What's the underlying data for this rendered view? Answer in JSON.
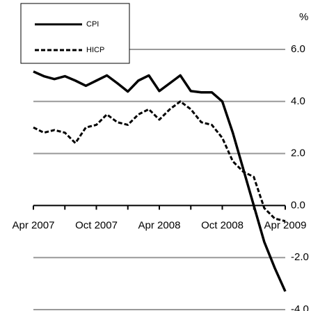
{
  "chart_data": {
    "type": "line",
    "y_unit": "%",
    "categories": [
      "Apr 2007",
      null,
      null,
      null,
      null,
      null,
      "Oct 2007",
      null,
      null,
      null,
      null,
      null,
      "Apr 2008",
      null,
      null,
      null,
      null,
      null,
      "Oct 2008",
      null,
      null,
      null,
      null,
      null,
      "Apr 2009"
    ],
    "series": [
      {
        "name": "CPI",
        "color": "#000000",
        "dash": false,
        "values": [
          5.15,
          4.97,
          4.86,
          4.97,
          4.8,
          4.6,
          4.8,
          5.0,
          4.7,
          4.38,
          4.8,
          5.0,
          4.4,
          4.7,
          5.0,
          4.4,
          4.35,
          4.35,
          4.0,
          2.8,
          1.4,
          0.0,
          -1.4,
          -2.4,
          -3.3
        ]
      },
      {
        "name": "HICP",
        "color": "#000000",
        "dash": true,
        "values": [
          3.0,
          2.8,
          2.9,
          2.8,
          2.4,
          3.0,
          3.1,
          3.5,
          3.2,
          3.1,
          3.5,
          3.7,
          3.3,
          3.7,
          4.0,
          3.7,
          3.2,
          3.1,
          2.6,
          1.7,
          1.3,
          1.1,
          -0.1,
          -0.5,
          -0.6
        ]
      }
    ],
    "ylim": [
      -4,
      6
    ],
    "yticks": [
      {
        "value": 6,
        "label": "6.0"
      },
      {
        "value": 4,
        "label": "4.0"
      },
      {
        "value": 2,
        "label": "2.0"
      },
      {
        "value": 0,
        "label": "0.0"
      },
      {
        "value": -2,
        "label": "-2.0"
      },
      {
        "value": -4,
        "label": "-4.0"
      }
    ],
    "grid": true
  }
}
